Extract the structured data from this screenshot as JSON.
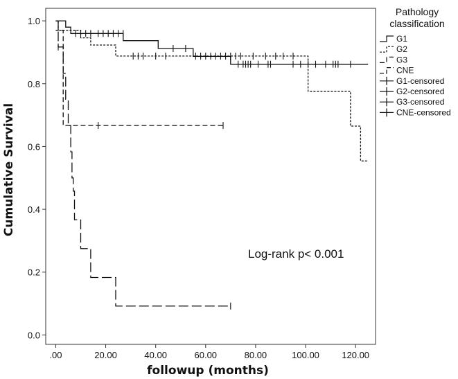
{
  "chart_data": {
    "type": "line",
    "subtype": "kaplan-meier",
    "xlabel": "followup (months)",
    "ylabel": "Cumulative Survival",
    "xlim": [
      -4,
      128
    ],
    "ylim": [
      -0.03,
      1.04
    ],
    "xticks": [
      0,
      20,
      40,
      60,
      80,
      100,
      120
    ],
    "xtick_labels": [
      ".00",
      "20.00",
      "40.00",
      "60.00",
      "80.00",
      "100.00",
      "120.00"
    ],
    "yticks": [
      0.0,
      0.2,
      0.4,
      0.6,
      0.8,
      1.0
    ],
    "ytick_labels": [
      "0.0",
      "0.2",
      "0.4",
      "0.6",
      "0.8",
      "1.0"
    ],
    "annotation": "Log-rank p< 0.001",
    "legend": {
      "title_line1": "Pathology",
      "title_line2": "classification",
      "position": "right",
      "entries": [
        "G1",
        "G2",
        "G3",
        "CNE",
        "G1-censored",
        "G2-censored",
        "G3-censored",
        "CNE-censored"
      ]
    },
    "series": [
      {
        "name": "G1",
        "dash": "solid",
        "steps": [
          [
            0,
            1.0
          ],
          [
            4,
            0.98
          ],
          [
            6,
            0.96
          ],
          [
            27,
            0.937
          ],
          [
            41,
            0.912
          ],
          [
            55,
            0.887
          ],
          [
            70,
            0.862
          ],
          [
            125,
            0.862
          ]
        ],
        "censored": [
          [
            8,
            0.96
          ],
          [
            10,
            0.96
          ],
          [
            12,
            0.96
          ],
          [
            14,
            0.96
          ],
          [
            17,
            0.96
          ],
          [
            19,
            0.96
          ],
          [
            21,
            0.96
          ],
          [
            23,
            0.96
          ],
          [
            25,
            0.96
          ],
          [
            27,
            0.96
          ],
          [
            47,
            0.912
          ],
          [
            52,
            0.912
          ],
          [
            73,
            0.862
          ],
          [
            75,
            0.862
          ],
          [
            76,
            0.862
          ],
          [
            77,
            0.862
          ],
          [
            78,
            0.862
          ],
          [
            81,
            0.862
          ],
          [
            85,
            0.862
          ],
          [
            86,
            0.862
          ],
          [
            95,
            0.862
          ],
          [
            98,
            0.862
          ],
          [
            101,
            0.862
          ],
          [
            104,
            0.862
          ],
          [
            108,
            0.862
          ],
          [
            111,
            0.862
          ],
          [
            112,
            0.862
          ],
          [
            113,
            0.862
          ],
          [
            118,
            0.862
          ]
        ]
      },
      {
        "name": "G2",
        "dash": "short",
        "steps": [
          [
            0,
            0.97
          ],
          [
            8,
            0.97
          ],
          [
            10,
            0.946
          ],
          [
            14,
            0.923
          ],
          [
            24,
            0.888
          ],
          [
            101,
            0.888
          ],
          [
            101,
            0.776
          ],
          [
            118,
            0.776
          ],
          [
            118,
            0.665
          ],
          [
            122,
            0.665
          ],
          [
            122,
            0.554
          ],
          [
            125,
            0.554
          ]
        ],
        "censored": [
          [
            31,
            0.888
          ],
          [
            33,
            0.888
          ],
          [
            35,
            0.888
          ],
          [
            40,
            0.888
          ],
          [
            44,
            0.888
          ],
          [
            56,
            0.888
          ],
          [
            58,
            0.888
          ],
          [
            60,
            0.888
          ],
          [
            62,
            0.888
          ],
          [
            64,
            0.888
          ],
          [
            66,
            0.888
          ],
          [
            68,
            0.888
          ],
          [
            70,
            0.888
          ],
          [
            72,
            0.888
          ],
          [
            74,
            0.888
          ],
          [
            79,
            0.888
          ],
          [
            84,
            0.888
          ],
          [
            88,
            0.888
          ],
          [
            91,
            0.888
          ],
          [
            95,
            0.888
          ]
        ]
      },
      {
        "name": "G3",
        "dash": "medium",
        "steps": [
          [
            0,
            1.0
          ],
          [
            1,
            1.0
          ],
          [
            1,
            0.97
          ],
          [
            3,
            0.97
          ],
          [
            3,
            0.667
          ],
          [
            67,
            0.667
          ]
        ],
        "censored": [
          [
            17,
            0.667
          ],
          [
            67,
            0.667
          ]
        ]
      },
      {
        "name": "CNE",
        "dash": "long",
        "steps": [
          [
            0,
            1.0
          ],
          [
            1,
            0.917
          ],
          [
            3,
            0.917
          ],
          [
            3,
            0.833
          ],
          [
            4,
            0.833
          ],
          [
            4,
            0.75
          ],
          [
            5,
            0.75
          ],
          [
            5,
            0.667
          ],
          [
            6,
            0.667
          ],
          [
            6,
            0.583
          ],
          [
            6.5,
            0.583
          ],
          [
            6.5,
            0.5
          ],
          [
            7,
            0.5
          ],
          [
            7,
            0.458
          ],
          [
            7.5,
            0.458
          ],
          [
            7.5,
            0.367
          ],
          [
            10,
            0.367
          ],
          [
            10,
            0.275
          ],
          [
            14,
            0.275
          ],
          [
            14,
            0.183
          ],
          [
            24,
            0.183
          ],
          [
            24,
            0.092
          ],
          [
            70,
            0.092
          ]
        ],
        "censored": [
          [
            1,
            0.917
          ],
          [
            70,
            0.092
          ]
        ]
      }
    ]
  }
}
